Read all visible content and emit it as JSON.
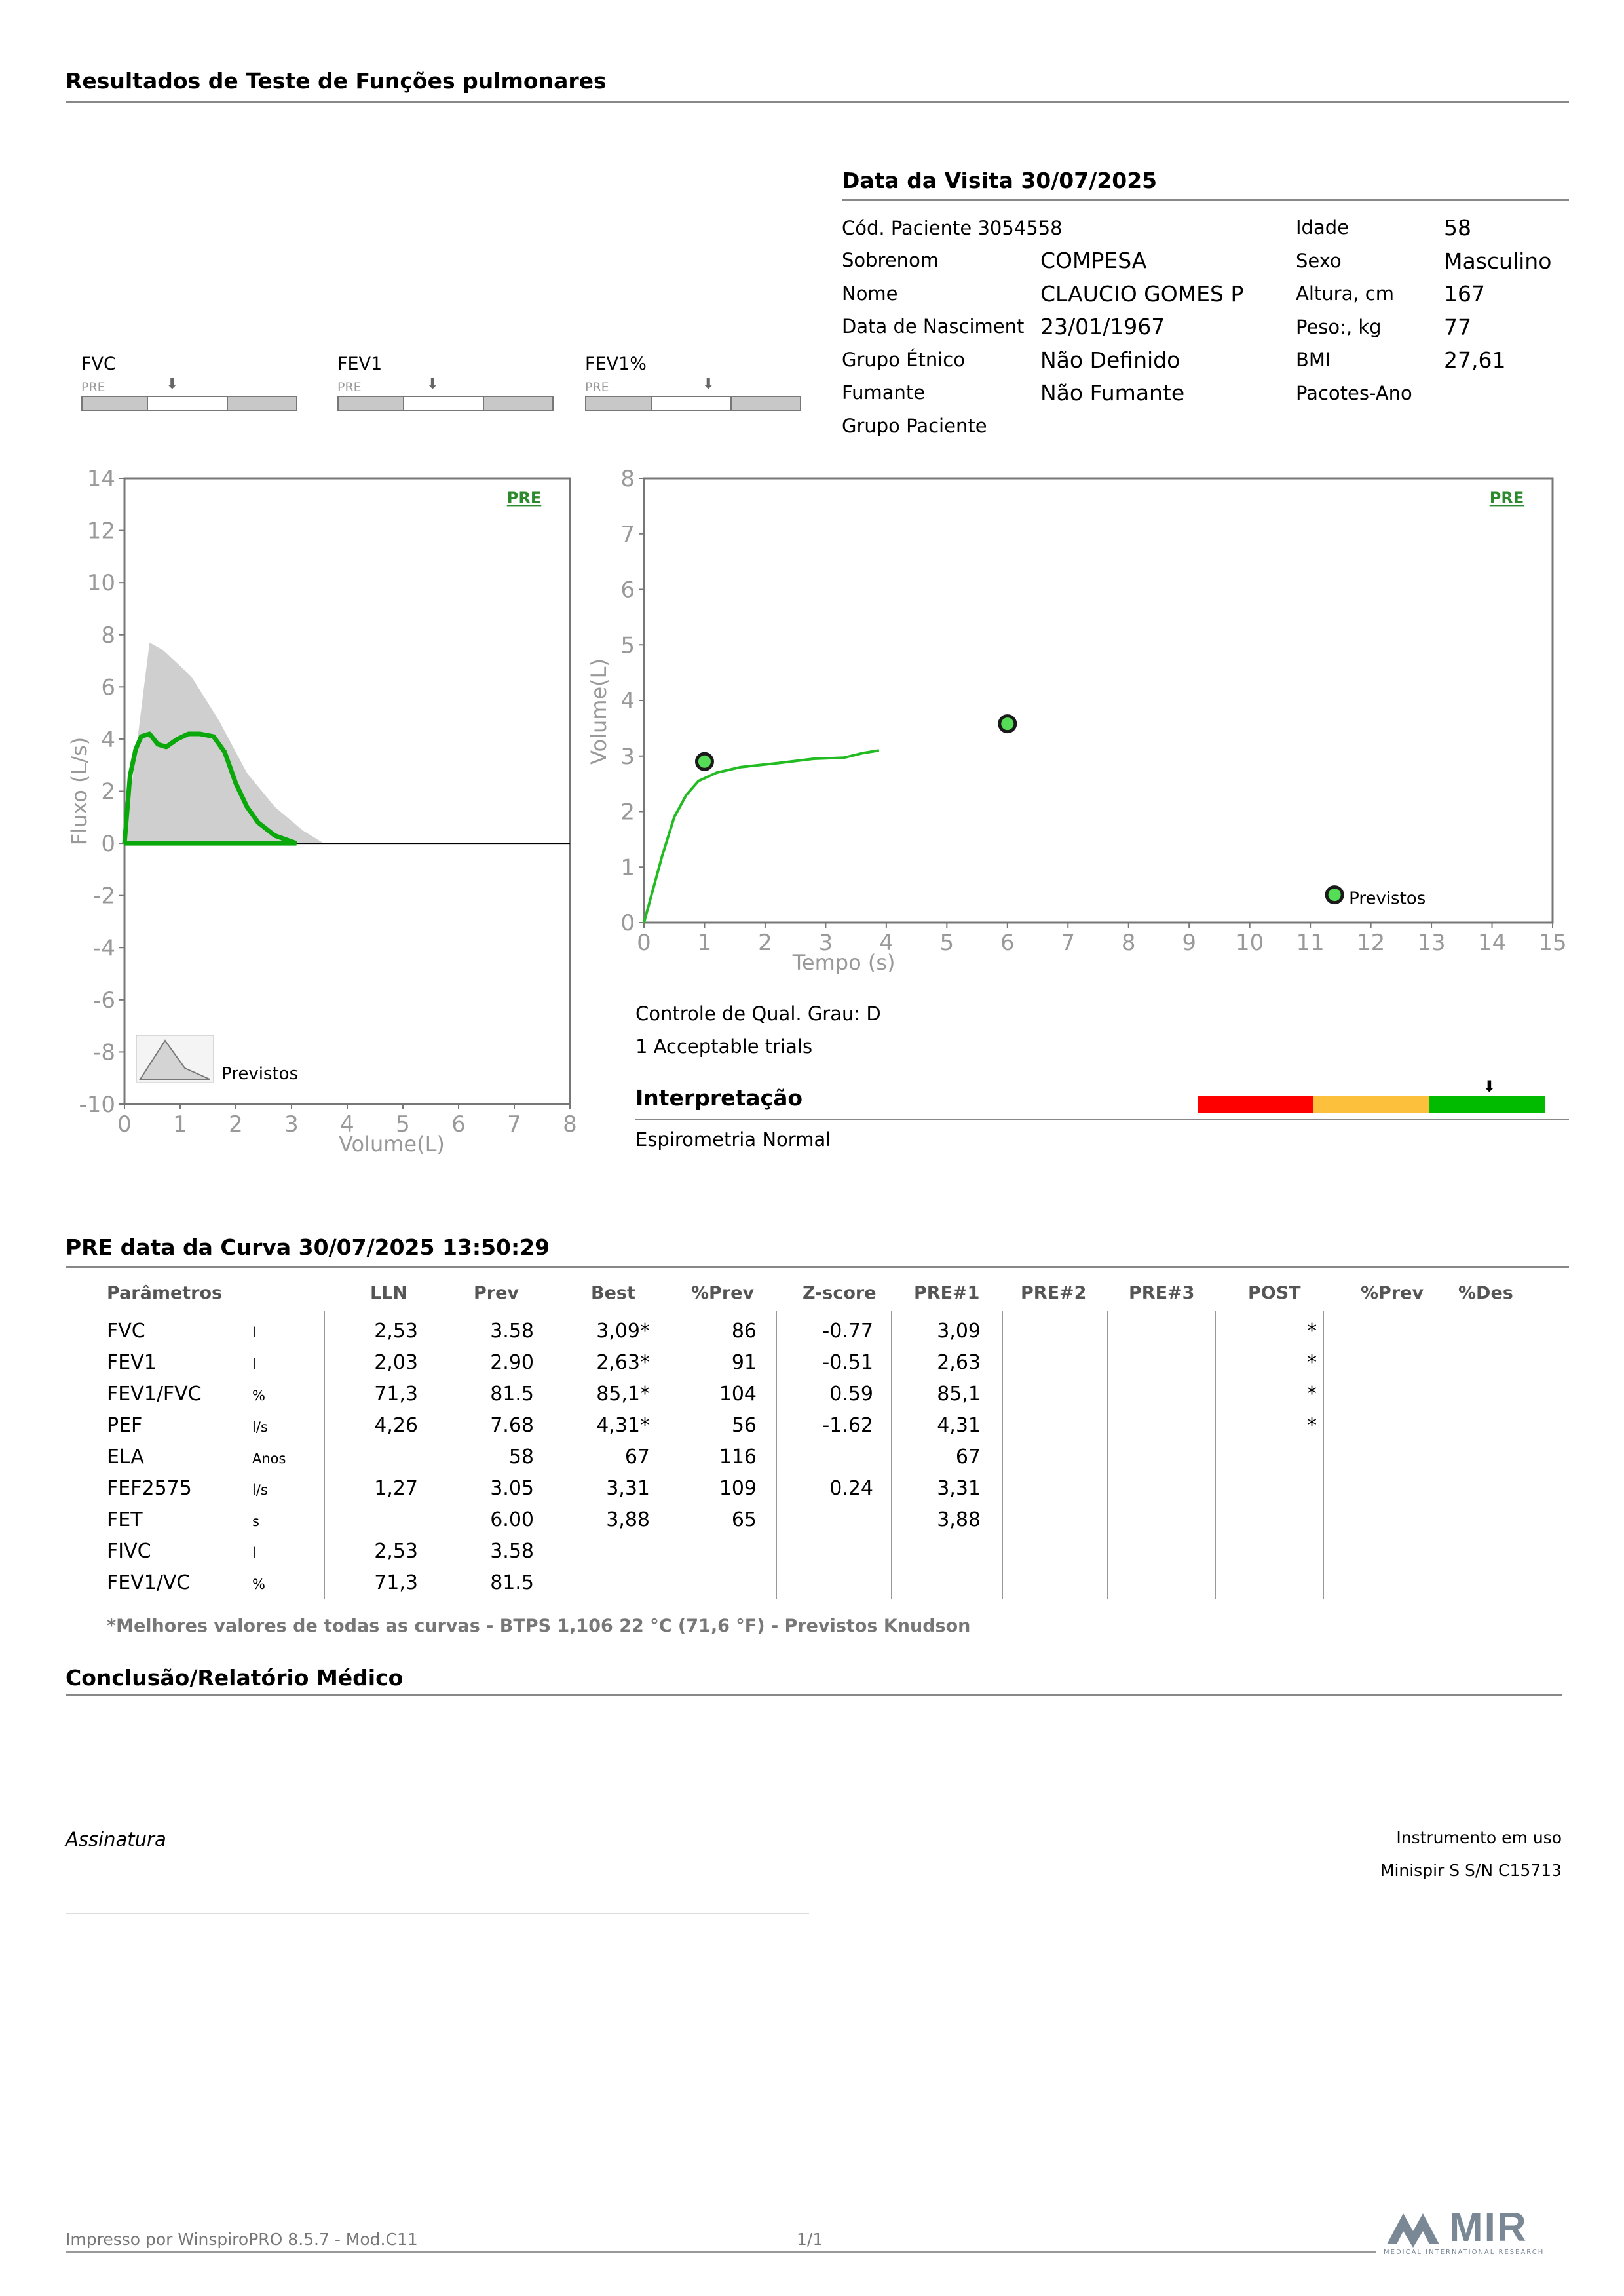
{
  "page_title": "Resultados de Teste de Funções pulmonares",
  "visit": {
    "title": "Data da Visita 30/07/2025",
    "patient_code": "Cód. Paciente 3054558",
    "rows": [
      {
        "label": "Sobrenom",
        "value": "COMPESA"
      },
      {
        "label": "Nome",
        "value": "CLAUCIO GOMES P"
      },
      {
        "label": "Data de Nasciment",
        "value": "23/01/1967"
      },
      {
        "label": "Grupo Étnico",
        "value": "Não Definido"
      },
      {
        "label": "Fumante",
        "value": "Não Fumante"
      },
      {
        "label": "Grupo Paciente",
        "value": ""
      }
    ],
    "right_rows": [
      {
        "label": "Idade",
        "value": "58"
      },
      {
        "label": "Sexo",
        "value": "Masculino"
      },
      {
        "label": "Altura, cm",
        "value": "167"
      },
      {
        "label": "Peso:, kg",
        "value": "77"
      },
      {
        "label": "BMI",
        "value": "27,61"
      },
      {
        "label": "Pacotes-Ano",
        "value": ""
      }
    ]
  },
  "mini_bars": [
    {
      "name": "FVC",
      "pre": "PRE",
      "level": 0.42
    },
    {
      "name": "FEV1",
      "pre": "PRE",
      "level": 0.44
    },
    {
      "name": "FEV1%",
      "pre": "PRE",
      "level": 0.57
    }
  ],
  "chart_data": [
    {
      "type": "line",
      "xlabel": "Volume(L)",
      "ylabel": "Fluxo (L/s)",
      "xlim": [
        0,
        8
      ],
      "ylim": [
        -10,
        14
      ],
      "x_ticks": [
        "0",
        "1",
        "2",
        "3",
        "4",
        "5",
        "6",
        "7",
        "8"
      ],
      "y_ticks": [
        "14",
        "12",
        "10",
        "8",
        "6",
        "4",
        "2",
        "0",
        "-2",
        "-4",
        "-6",
        "-8",
        "-10"
      ],
      "badge": "PRE",
      "legend_label": "Previstos",
      "series": [
        {
          "values": [
            [
              0,
              0
            ],
            [
              0.1,
              2.6
            ],
            [
              0.2,
              3.6
            ],
            [
              0.3,
              4.1
            ],
            [
              0.45,
              4.2
            ],
            [
              0.6,
              3.8
            ],
            [
              0.75,
              3.7
            ],
            [
              0.95,
              4.0
            ],
            [
              1.15,
              4.2
            ],
            [
              1.35,
              4.2
            ],
            [
              1.6,
              4.1
            ],
            [
              1.8,
              3.5
            ],
            [
              2.0,
              2.3
            ],
            [
              2.2,
              1.4
            ],
            [
              2.4,
              0.8
            ],
            [
              2.7,
              0.3
            ],
            [
              3.09,
              0
            ]
          ]
        },
        {
          "values": [
            [
              0,
              0
            ],
            [
              3.09,
              0
            ]
          ]
        },
        {
          "values": [
            [
              0,
              0
            ],
            [
              0.45,
              7.7
            ],
            [
              0.7,
              7.4
            ],
            [
              1.2,
              6.4
            ],
            [
              1.7,
              4.7
            ],
            [
              2.2,
              2.7
            ],
            [
              2.7,
              1.4
            ],
            [
              3.2,
              0.5
            ],
            [
              3.58,
              0
            ]
          ]
        }
      ]
    },
    {
      "type": "line",
      "xlabel": "Tempo (s)",
      "ylabel": "Volume(L)",
      "xlim": [
        0,
        15
      ],
      "ylim": [
        0,
        8
      ],
      "x_ticks": [
        "0",
        "1",
        "2",
        "3",
        "4",
        "5",
        "6",
        "7",
        "8",
        "9",
        "10",
        "11",
        "12",
        "13",
        "14",
        "15"
      ],
      "y_ticks": [
        "8",
        "7",
        "6",
        "5",
        "4",
        "3",
        "2",
        "1",
        "0"
      ],
      "badge": "PRE",
      "legend_label": "Previstos",
      "series": [
        {
          "values": [
            [
              0,
              0
            ],
            [
              0.15,
              0.6
            ],
            [
              0.3,
              1.2
            ],
            [
              0.5,
              1.9
            ],
            [
              0.7,
              2.3
            ],
            [
              0.9,
              2.55
            ],
            [
              1.2,
              2.7
            ],
            [
              1.6,
              2.8
            ],
            [
              2.2,
              2.87
            ],
            [
              2.8,
              2.95
            ],
            [
              3.3,
              2.97
            ],
            [
              3.6,
              3.05
            ],
            [
              3.88,
              3.1
            ]
          ]
        },
        {
          "values": [
            [
              1,
              2.9
            ],
            [
              6,
              3.58
            ],
            [
              11.4,
              0.5
            ]
          ]
        }
      ]
    }
  ],
  "quality": {
    "line1": "Controle de Qual. Grau: D",
    "line2": "1 Acceptable trials"
  },
  "interpretation": {
    "title": "Interpretação",
    "text": "Espirometria Normal",
    "scale_colors": [
      "#ff0000",
      "#fdc03c",
      "#00bb00"
    ],
    "scale_level": 0.84
  },
  "curve": {
    "title": "PRE data da Curva 30/07/2025   13:50:29",
    "headers": [
      "Parâmetros",
      "LLN",
      "Prev",
      "Best",
      "%Prev",
      "Z-score",
      "PRE#1",
      "PRE#2",
      "PRE#3",
      "POST",
      "%Prev",
      "%Des"
    ],
    "rows": [
      {
        "param": "FVC",
        "unit": "l",
        "lln": "2,53",
        "prev": "3.58",
        "best": "3,09*",
        "pprev": "86",
        "z": "-0.77",
        "pre1": "3,09",
        "post": "*"
      },
      {
        "param": "FEV1",
        "unit": "l",
        "lln": "2,03",
        "prev": "2.90",
        "best": "2,63*",
        "pprev": "91",
        "z": "-0.51",
        "pre1": "2,63",
        "post": "*"
      },
      {
        "param": "FEV1/FVC",
        "unit": "%",
        "lln": "71,3",
        "prev": "81.5",
        "best": "85,1*",
        "pprev": "104",
        "z": "0.59",
        "pre1": "85,1",
        "post": "*"
      },
      {
        "param": "PEF",
        "unit": "l/s",
        "lln": "4,26",
        "prev": "7.68",
        "best": "4,31*",
        "pprev": "56",
        "z": "-1.62",
        "pre1": "4,31",
        "post": "*"
      },
      {
        "param": "ELA",
        "unit": "Anos",
        "lln": "",
        "prev": "58",
        "best": "67",
        "pprev": "116",
        "z": "",
        "pre1": "67",
        "post": ""
      },
      {
        "param": "FEF2575",
        "unit": "l/s",
        "lln": "1,27",
        "prev": "3.05",
        "best": "3,31",
        "pprev": "109",
        "z": "0.24",
        "pre1": "3,31",
        "post": ""
      },
      {
        "param": "FET",
        "unit": "s",
        "lln": "",
        "prev": "6.00",
        "best": "3,88",
        "pprev": "65",
        "z": "",
        "pre1": "3,88",
        "post": ""
      },
      {
        "param": "FIVC",
        "unit": "l",
        "lln": "2,53",
        "prev": "3.58",
        "best": "",
        "pprev": "",
        "z": "",
        "pre1": "",
        "post": ""
      },
      {
        "param": "FEV1/VC",
        "unit": "%",
        "lln": "71,3",
        "prev": "81.5",
        "best": "",
        "pprev": "",
        "z": "",
        "pre1": "",
        "post": ""
      }
    ],
    "footnote": "*Melhores valores de todas as curvas - BTPS  1,106  22 °C  (71,6 °F) - Previstos Knudson"
  },
  "conclusion_title": "Conclusão/Relatório Médico",
  "signature": "Assinatura",
  "instrument": {
    "label": "Instrumento em uso",
    "value": "Minispir S S/N C15713"
  },
  "footer": {
    "printed_by": "Impresso por WinspiroPRO  8.5.7 - Mod.C11",
    "page": "1/1",
    "logo_text": "MIR",
    "logo_sub": "MEDICAL INTERNATIONAL RESEARCH"
  }
}
